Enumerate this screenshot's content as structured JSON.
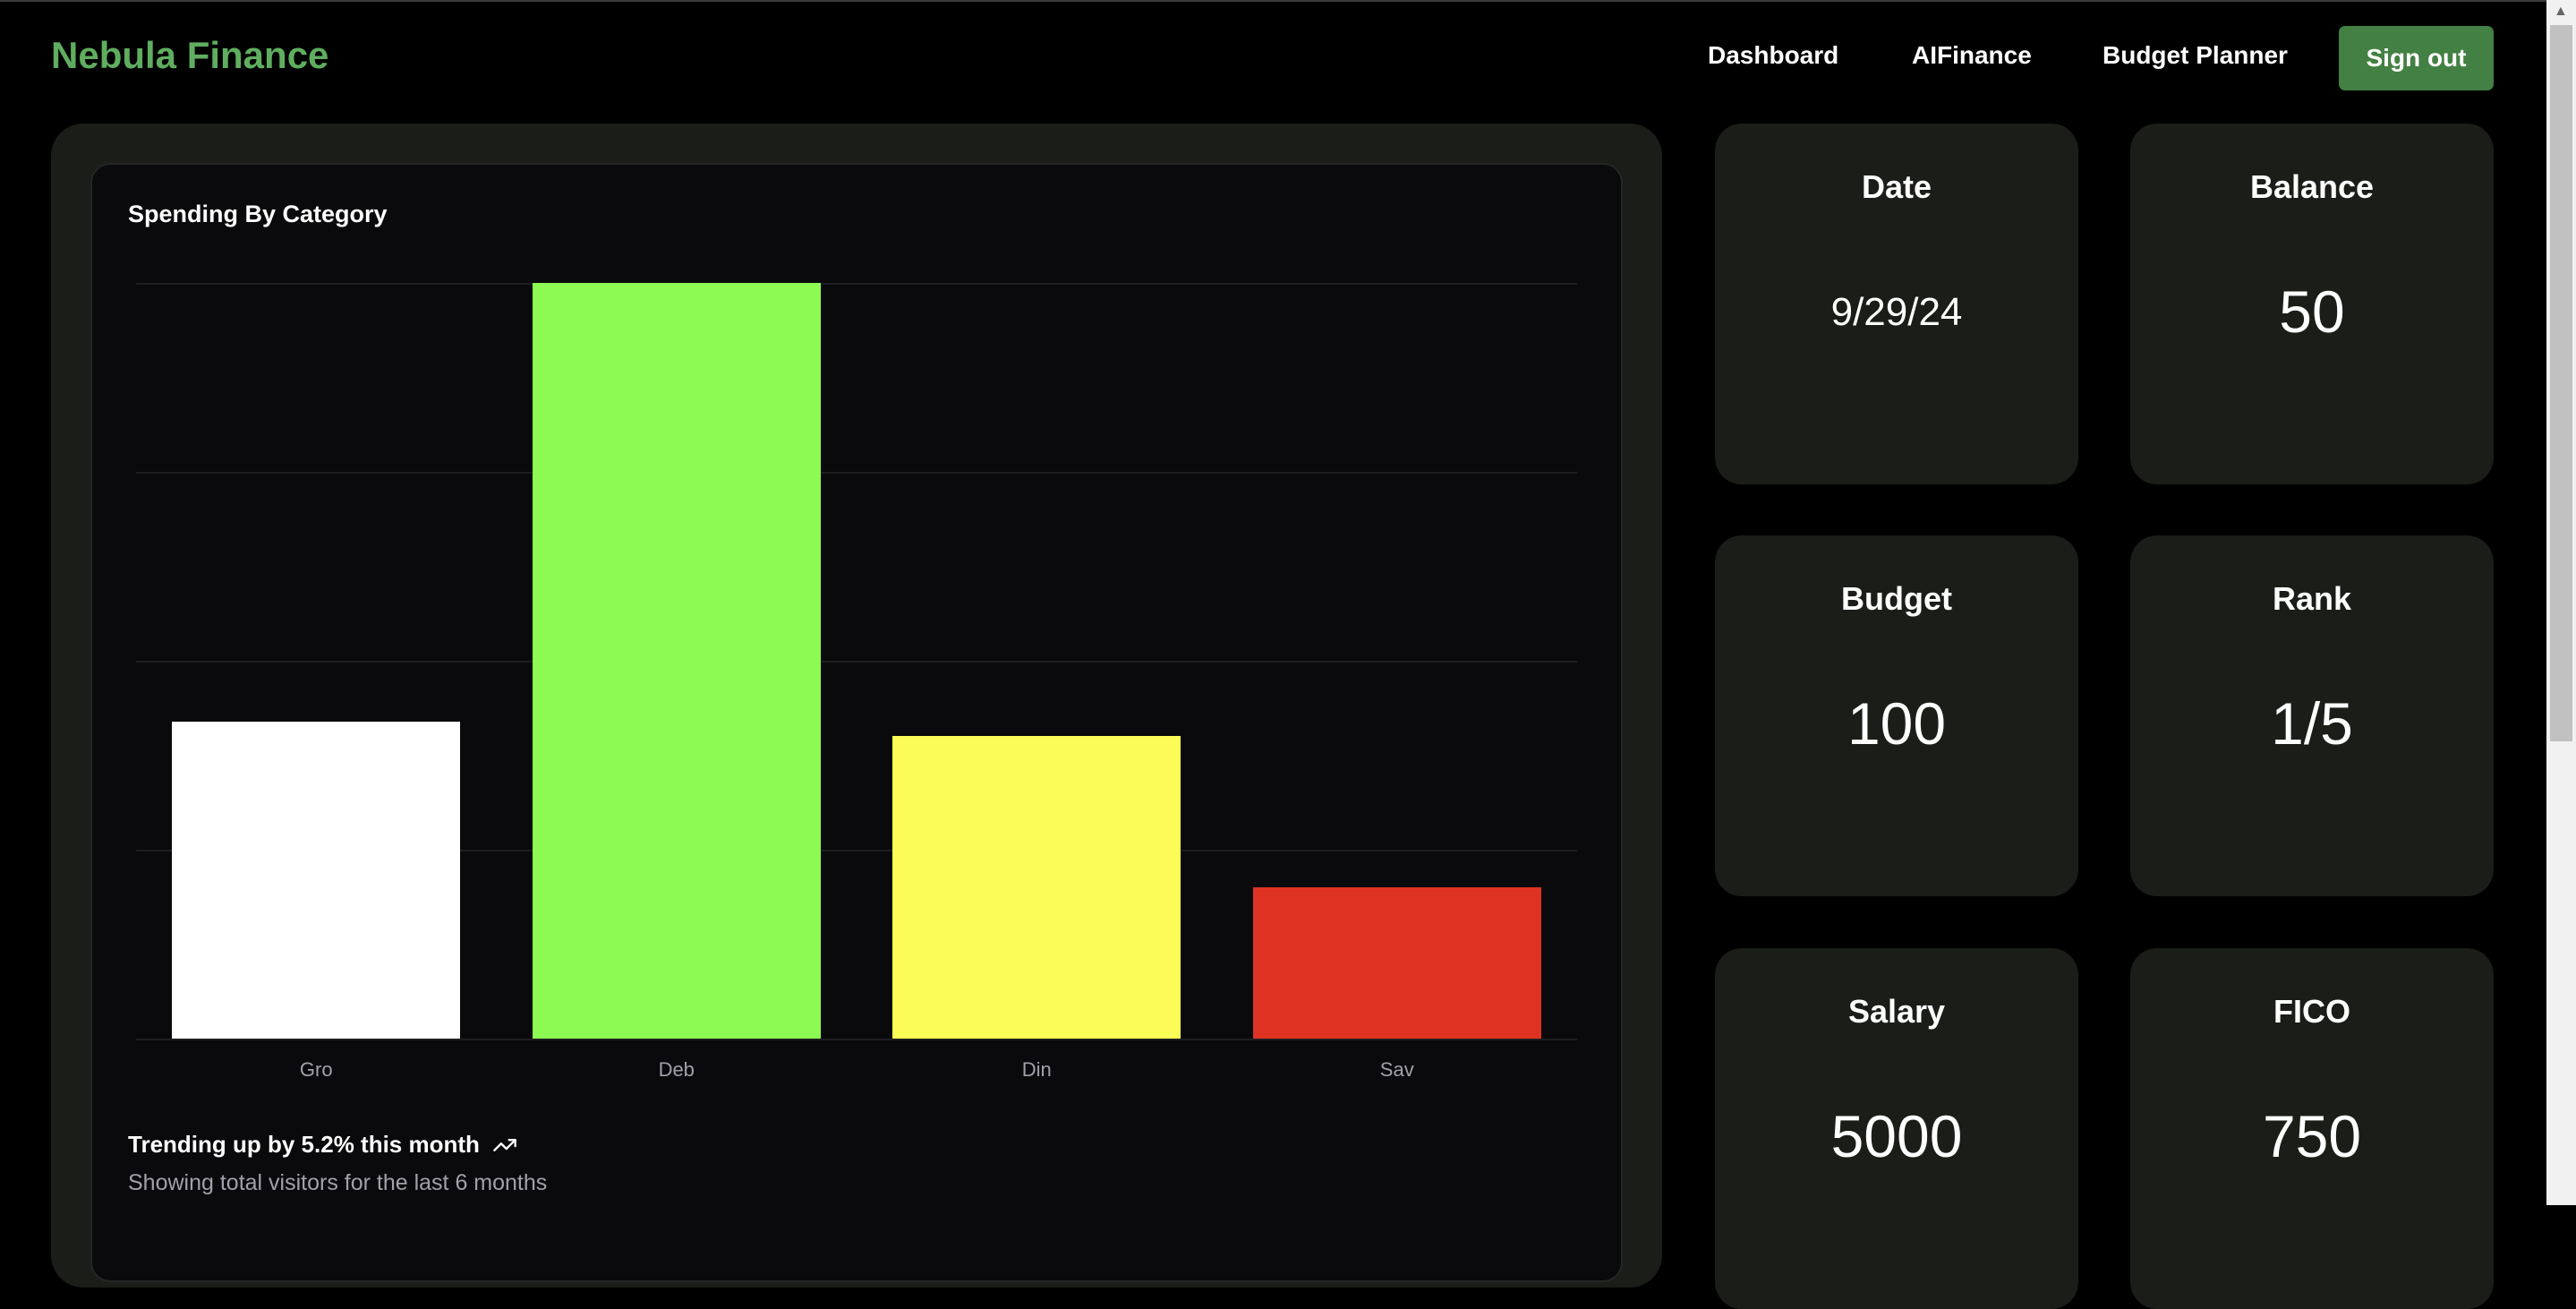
{
  "header": {
    "brand": "Nebula Finance",
    "nav": [
      "Dashboard",
      "AIFinance",
      "Budget Planner"
    ],
    "signout": "Sign out"
  },
  "chart_data": {
    "type": "bar",
    "title": "Spending By Category",
    "categories": [
      "Gro",
      "Deb",
      "Din",
      "Sav"
    ],
    "values": [
      42,
      100,
      40,
      20
    ],
    "colors": [
      "#ffffff",
      "#8cfa52",
      "#fbfc56",
      "#de3323"
    ],
    "ylim": [
      0,
      100
    ],
    "grid": true,
    "xlabel": "",
    "ylabel": ""
  },
  "footer": {
    "trend": "Trending up by 5.2% this month",
    "note": "Showing total visitors for the last 6 months"
  },
  "stats": [
    {
      "title": "Date",
      "value": "9/29/24"
    },
    {
      "title": "Balance",
      "value": "50"
    },
    {
      "title": "Budget",
      "value": "100"
    },
    {
      "title": "Rank",
      "value": "1/5"
    },
    {
      "title": "Salary",
      "value": "5000"
    },
    {
      "title": "FICO",
      "value": "750"
    }
  ]
}
